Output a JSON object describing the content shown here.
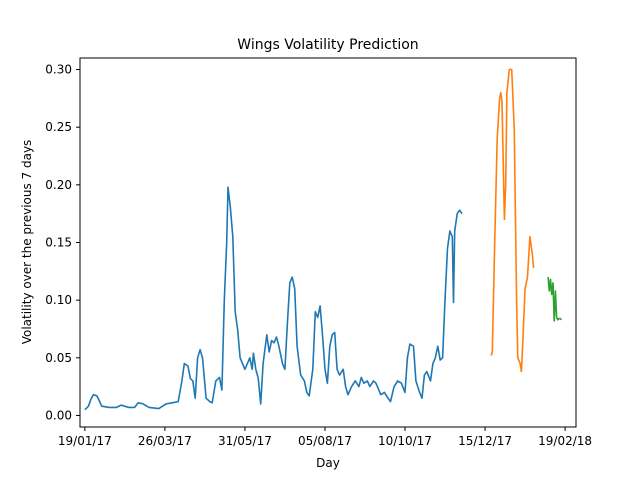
{
  "chart_data": {
    "type": "line",
    "title": "Wings Volatility Prediction",
    "xlabel": "Day",
    "ylabel": "Volatility over the previous 7 days",
    "xlim": [
      "2017-01-15",
      "2018-02-28"
    ],
    "ylim": [
      -0.01,
      0.31
    ],
    "x_ticks": [
      {
        "date": "2017-01-19",
        "label": "19/01/17"
      },
      {
        "date": "2017-03-26",
        "label": "26/03/17"
      },
      {
        "date": "2017-05-31",
        "label": "31/05/17"
      },
      {
        "date": "2017-08-05",
        "label": "05/08/17"
      },
      {
        "date": "2017-10-10",
        "label": "10/10/17"
      },
      {
        "date": "2017-12-15",
        "label": "15/12/17"
      },
      {
        "date": "2018-02-19",
        "label": "19/02/18"
      }
    ],
    "y_ticks": [
      {
        "value": 0.0,
        "label": "0.00"
      },
      {
        "value": 0.05,
        "label": "0.05"
      },
      {
        "value": 0.1,
        "label": "0.10"
      },
      {
        "value": 0.15,
        "label": "0.15"
      },
      {
        "value": 0.2,
        "label": "0.20"
      },
      {
        "value": 0.25,
        "label": "0.25"
      },
      {
        "value": 0.3,
        "label": "0.30"
      }
    ],
    "grid": false,
    "legend": "none",
    "series": [
      {
        "color": "#1f77b4",
        "points": [
          [
            "2017-01-19",
            0.005
          ],
          [
            "2017-01-22",
            0.008
          ],
          [
            "2017-01-24",
            0.014
          ],
          [
            "2017-01-26",
            0.018
          ],
          [
            "2017-01-29",
            0.017
          ],
          [
            "2017-02-02",
            0.008
          ],
          [
            "2017-02-08",
            0.007
          ],
          [
            "2017-02-14",
            0.007
          ],
          [
            "2017-02-18",
            0.009
          ],
          [
            "2017-02-24",
            0.007
          ],
          [
            "2017-03-01",
            0.007
          ],
          [
            "2017-03-04",
            0.011
          ],
          [
            "2017-03-08",
            0.01
          ],
          [
            "2017-03-13",
            0.007
          ],
          [
            "2017-03-21",
            0.006
          ],
          [
            "2017-03-27",
            0.01
          ],
          [
            "2017-04-01",
            0.011
          ],
          [
            "2017-04-06",
            0.012
          ],
          [
            "2017-04-09",
            0.03
          ],
          [
            "2017-04-11",
            0.045
          ],
          [
            "2017-04-14",
            0.043
          ],
          [
            "2017-04-16",
            0.032
          ],
          [
            "2017-04-18",
            0.03
          ],
          [
            "2017-04-20",
            0.015
          ],
          [
            "2017-04-22",
            0.05
          ],
          [
            "2017-04-24",
            0.057
          ],
          [
            "2017-04-26",
            0.05
          ],
          [
            "2017-04-29",
            0.015
          ],
          [
            "2017-05-02",
            0.012
          ],
          [
            "2017-05-04",
            0.011
          ],
          [
            "2017-05-07",
            0.03
          ],
          [
            "2017-05-10",
            0.033
          ],
          [
            "2017-05-12",
            0.022
          ],
          [
            "2017-05-14",
            0.1
          ],
          [
            "2017-05-16",
            0.15
          ],
          [
            "2017-05-17",
            0.198
          ],
          [
            "2017-05-19",
            0.18
          ],
          [
            "2017-05-21",
            0.155
          ],
          [
            "2017-05-23",
            0.09
          ],
          [
            "2017-05-25",
            0.074
          ],
          [
            "2017-05-27",
            0.05
          ],
          [
            "2017-05-29",
            0.045
          ],
          [
            "2017-05-31",
            0.04
          ],
          [
            "2017-06-02",
            0.045
          ],
          [
            "2017-06-04",
            0.05
          ],
          [
            "2017-06-06",
            0.04
          ],
          [
            "2017-06-07",
            0.054
          ],
          [
            "2017-06-09",
            0.04
          ],
          [
            "2017-06-11",
            0.032
          ],
          [
            "2017-06-13",
            0.01
          ],
          [
            "2017-06-15",
            0.045
          ],
          [
            "2017-06-18",
            0.07
          ],
          [
            "2017-06-20",
            0.055
          ],
          [
            "2017-06-22",
            0.065
          ],
          [
            "2017-06-24",
            0.063
          ],
          [
            "2017-06-26",
            0.068
          ],
          [
            "2017-06-28",
            0.06
          ],
          [
            "2017-07-01",
            0.045
          ],
          [
            "2017-07-03",
            0.04
          ],
          [
            "2017-07-05",
            0.08
          ],
          [
            "2017-07-07",
            0.115
          ],
          [
            "2017-07-09",
            0.12
          ],
          [
            "2017-07-11",
            0.11
          ],
          [
            "2017-07-13",
            0.06
          ],
          [
            "2017-07-16",
            0.035
          ],
          [
            "2017-07-19",
            0.03
          ],
          [
            "2017-07-21",
            0.02
          ],
          [
            "2017-07-23",
            0.017
          ],
          [
            "2017-07-26",
            0.04
          ],
          [
            "2017-07-28",
            0.09
          ],
          [
            "2017-07-30",
            0.085
          ],
          [
            "2017-08-01",
            0.095
          ],
          [
            "2017-08-03",
            0.07
          ],
          [
            "2017-08-05",
            0.04
          ],
          [
            "2017-08-07",
            0.028
          ],
          [
            "2017-08-09",
            0.06
          ],
          [
            "2017-08-11",
            0.07
          ],
          [
            "2017-08-13",
            0.072
          ],
          [
            "2017-08-15",
            0.04
          ],
          [
            "2017-08-17",
            0.035
          ],
          [
            "2017-08-20",
            0.04
          ],
          [
            "2017-08-22",
            0.025
          ],
          [
            "2017-08-24",
            0.018
          ],
          [
            "2017-08-27",
            0.025
          ],
          [
            "2017-08-30",
            0.03
          ],
          [
            "2017-09-02",
            0.025
          ],
          [
            "2017-09-04",
            0.033
          ],
          [
            "2017-09-06",
            0.028
          ],
          [
            "2017-09-09",
            0.03
          ],
          [
            "2017-09-11",
            0.025
          ],
          [
            "2017-09-14",
            0.03
          ],
          [
            "2017-09-16",
            0.028
          ],
          [
            "2017-09-20",
            0.018
          ],
          [
            "2017-09-23",
            0.02
          ],
          [
            "2017-09-26",
            0.015
          ],
          [
            "2017-09-28",
            0.012
          ],
          [
            "2017-10-01",
            0.025
          ],
          [
            "2017-10-04",
            0.03
          ],
          [
            "2017-10-07",
            0.028
          ],
          [
            "2017-10-10",
            0.02
          ],
          [
            "2017-10-12",
            0.05
          ],
          [
            "2017-10-14",
            0.062
          ],
          [
            "2017-10-17",
            0.06
          ],
          [
            "2017-10-19",
            0.03
          ],
          [
            "2017-10-22",
            0.02
          ],
          [
            "2017-10-24",
            0.015
          ],
          [
            "2017-10-26",
            0.035
          ],
          [
            "2017-10-28",
            0.038
          ],
          [
            "2017-10-31",
            0.03
          ],
          [
            "2017-11-02",
            0.045
          ],
          [
            "2017-11-04",
            0.05
          ],
          [
            "2017-11-06",
            0.06
          ],
          [
            "2017-11-08",
            0.048
          ],
          [
            "2017-11-10",
            0.05
          ],
          [
            "2017-11-12",
            0.1
          ],
          [
            "2017-11-14",
            0.145
          ],
          [
            "2017-11-16",
            0.16
          ],
          [
            "2017-11-18",
            0.155
          ],
          [
            "2017-11-19",
            0.098
          ],
          [
            "2017-11-20",
            0.16
          ],
          [
            "2017-11-22",
            0.175
          ],
          [
            "2017-11-24",
            0.178
          ],
          [
            "2017-11-26",
            0.175
          ]
        ]
      },
      {
        "color": "#ff7f0e",
        "points": [
          [
            "2017-12-20",
            0.052
          ],
          [
            "2017-12-21",
            0.055
          ],
          [
            "2017-12-23",
            0.15
          ],
          [
            "2017-12-25",
            0.24
          ],
          [
            "2017-12-27",
            0.275
          ],
          [
            "2017-12-28",
            0.28
          ],
          [
            "2017-12-29",
            0.272
          ],
          [
            "2017-12-31",
            0.17
          ],
          [
            "2018-01-01",
            0.2
          ],
          [
            "2018-01-02",
            0.28
          ],
          [
            "2018-01-04",
            0.3
          ],
          [
            "2018-01-06",
            0.3
          ],
          [
            "2018-01-08",
            0.25
          ],
          [
            "2018-01-10",
            0.1
          ],
          [
            "2018-01-11",
            0.05
          ],
          [
            "2018-01-13",
            0.045
          ],
          [
            "2018-01-14",
            0.038
          ],
          [
            "2018-01-15",
            0.06
          ],
          [
            "2018-01-17",
            0.11
          ],
          [
            "2018-01-19",
            0.12
          ],
          [
            "2018-01-21",
            0.155
          ],
          [
            "2018-01-23",
            0.14
          ],
          [
            "2018-01-24",
            0.128
          ]
        ]
      },
      {
        "color": "#2ca02c",
        "points": [
          [
            "2018-02-05",
            0.12
          ],
          [
            "2018-02-06",
            0.108
          ],
          [
            "2018-02-07",
            0.118
          ],
          [
            "2018-02-08",
            0.105
          ],
          [
            "2018-02-09",
            0.115
          ],
          [
            "2018-02-10",
            0.082
          ],
          [
            "2018-02-11",
            0.108
          ],
          [
            "2018-02-12",
            0.085
          ],
          [
            "2018-02-13",
            0.083
          ],
          [
            "2018-02-14",
            0.084
          ],
          [
            "2018-02-15",
            0.084
          ],
          [
            "2018-02-16",
            0.083
          ]
        ]
      }
    ]
  }
}
